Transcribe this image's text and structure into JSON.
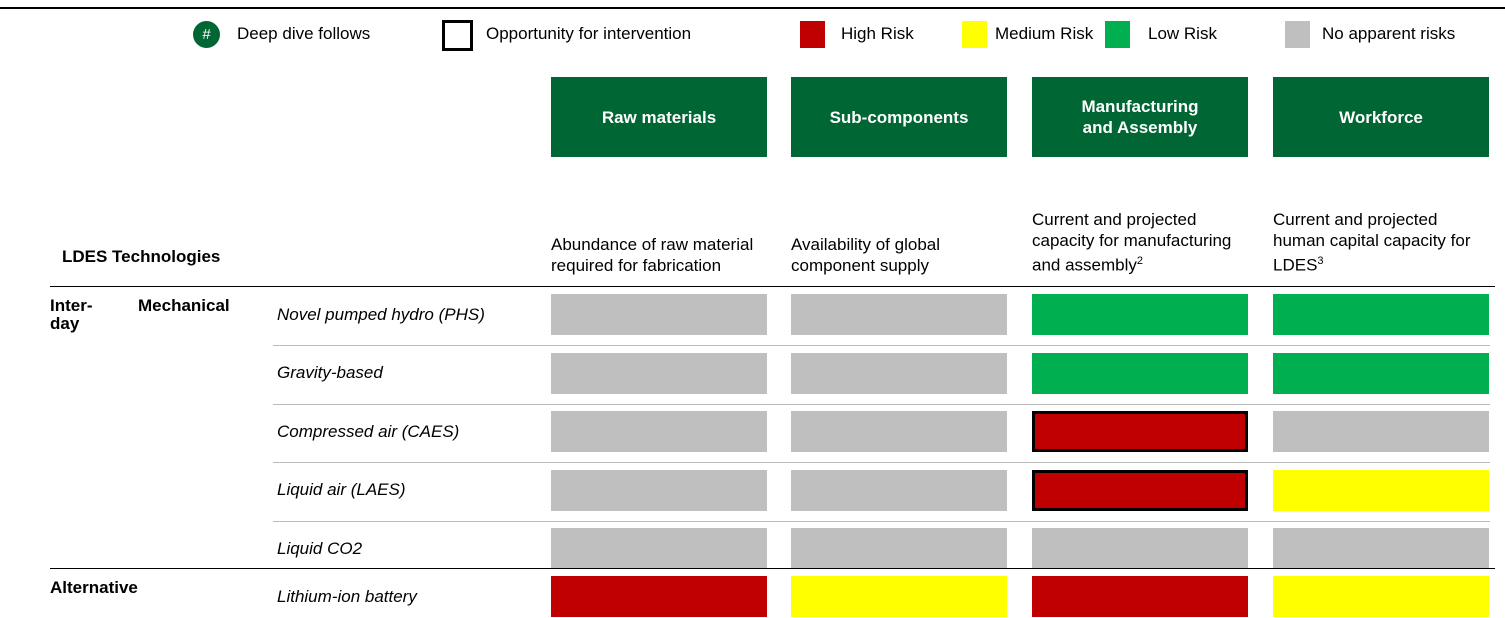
{
  "legend": [
    {
      "label": "Deep dive follows",
      "symbol": "#",
      "color": "#006633"
    },
    {
      "label": "Opportunity for intervention"
    },
    {
      "label": "High Risk",
      "color": "#c00000"
    },
    {
      "label": "Medium Risk",
      "color": "#ffff00"
    },
    {
      "label": "Low Risk",
      "color": "#00b050"
    },
    {
      "label": "No apparent risks",
      "color": "#bfbfbf"
    }
  ],
  "header_color": "#006633",
  "columns": [
    {
      "header": "Raw materials",
      "description": "Abundance of raw material required for fabrication"
    },
    {
      "header": "Sub-components",
      "description": "Availability of global component supply"
    },
    {
      "header": "Manufacturing and Assembly",
      "description": "Current and projected capacity for manufacturing and assembly",
      "footnote": "2"
    },
    {
      "header": "Workforce",
      "description": "Current and projected human capital capacity for LDES",
      "footnote": "3"
    }
  ],
  "row_header": "LDES Technologies",
  "groups": [
    {
      "name": [
        "Inter-",
        "day"
      ],
      "subgroup": "Mechanical",
      "rows": [
        {
          "label": "Novel pumped hydro (PHS)",
          "cells": [
            {
              "color": "#bfbfbf"
            },
            {
              "color": "#bfbfbf"
            },
            {
              "color": "#00b050"
            },
            {
              "color": "#00b050"
            }
          ]
        },
        {
          "label": "Gravity-based",
          "cells": [
            {
              "color": "#bfbfbf"
            },
            {
              "color": "#bfbfbf"
            },
            {
              "color": "#00b050"
            },
            {
              "color": "#00b050"
            }
          ]
        },
        {
          "label": "Compressed air (CAES)",
          "cells": [
            {
              "color": "#bfbfbf"
            },
            {
              "color": "#bfbfbf"
            },
            {
              "color": "#c00000",
              "outline": true
            },
            {
              "color": "#bfbfbf"
            }
          ]
        },
        {
          "label": "Liquid air (LAES)",
          "cells": [
            {
              "color": "#bfbfbf"
            },
            {
              "color": "#bfbfbf"
            },
            {
              "color": "#c00000",
              "outline": true
            },
            {
              "color": "#ffff00"
            }
          ]
        },
        {
          "label": "Liquid CO2",
          "cells": [
            {
              "color": "#bfbfbf"
            },
            {
              "color": "#bfbfbf"
            },
            {
              "color": "#bfbfbf"
            },
            {
              "color": "#bfbfbf"
            }
          ]
        }
      ]
    },
    {
      "name": [
        "Alternative"
      ],
      "rows": [
        {
          "label": "Lithium-ion battery",
          "cells": [
            {
              "color": "#c00000"
            },
            {
              "color": "#ffff00"
            },
            {
              "color": "#c00000"
            },
            {
              "color": "#ffff00"
            }
          ]
        }
      ]
    }
  ]
}
